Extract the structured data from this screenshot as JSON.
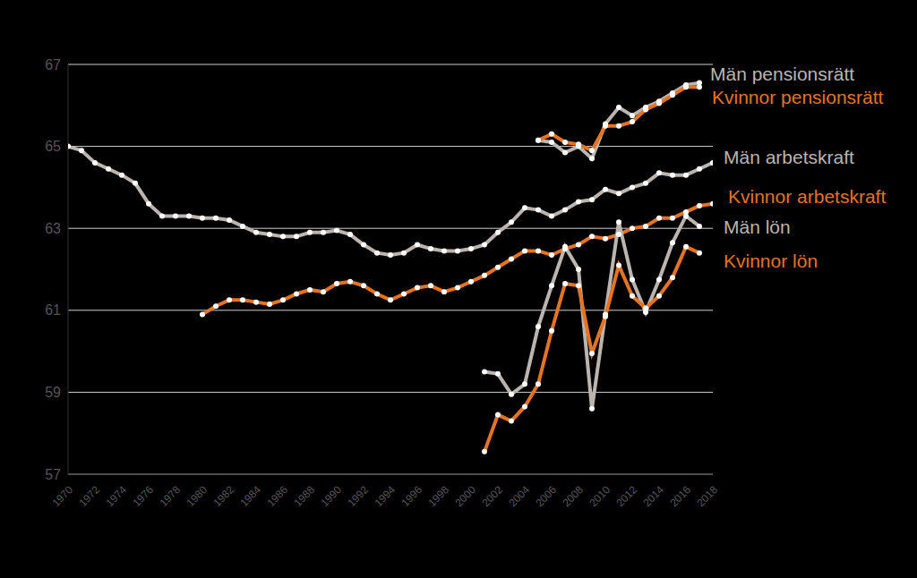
{
  "chart_data": {
    "type": "line",
    "x": [
      1970,
      1971,
      1972,
      1973,
      1974,
      1975,
      1976,
      1977,
      1978,
      1979,
      1980,
      1981,
      1982,
      1983,
      1984,
      1985,
      1986,
      1987,
      1988,
      1989,
      1990,
      1991,
      1992,
      1993,
      1994,
      1995,
      1996,
      1997,
      1998,
      1999,
      2000,
      2001,
      2002,
      2003,
      2004,
      2005,
      2006,
      2007,
      2008,
      2009,
      2010,
      2011,
      2012,
      2013,
      2014,
      2015,
      2016,
      2017,
      2018
    ],
    "xlim": [
      1970,
      2018
    ],
    "xticks": [
      1970,
      1972,
      1974,
      1976,
      1978,
      1980,
      1982,
      1984,
      1986,
      1988,
      1990,
      1992,
      1994,
      1996,
      1998,
      2000,
      2002,
      2004,
      2006,
      2008,
      2010,
      2012,
      2014,
      2016,
      2018
    ],
    "ylim": [
      57,
      67
    ],
    "yticks": [
      57,
      59,
      61,
      63,
      65,
      67
    ],
    "grid": true,
    "marker": "circle",
    "series": [
      {
        "name": "Män pensionsrätt",
        "color": "#bcb4ae",
        "values": [
          null,
          null,
          null,
          null,
          null,
          null,
          null,
          null,
          null,
          null,
          null,
          null,
          null,
          null,
          null,
          null,
          null,
          null,
          null,
          null,
          null,
          null,
          null,
          null,
          null,
          null,
          null,
          null,
          null,
          null,
          null,
          null,
          null,
          null,
          null,
          65.15,
          65.1,
          64.85,
          65.0,
          64.7,
          65.55,
          65.95,
          65.75,
          65.95,
          66.1,
          66.3,
          66.5,
          66.55,
          null
        ]
      },
      {
        "name": "Kvinnor pensionsrätt",
        "color": "#e5731f",
        "values": [
          null,
          null,
          null,
          null,
          null,
          null,
          null,
          null,
          null,
          null,
          null,
          null,
          null,
          null,
          null,
          null,
          null,
          null,
          null,
          null,
          null,
          null,
          null,
          null,
          null,
          null,
          null,
          null,
          null,
          null,
          null,
          null,
          null,
          null,
          null,
          65.15,
          65.3,
          65.1,
          65.05,
          64.9,
          65.5,
          65.5,
          65.6,
          65.9,
          66.05,
          66.25,
          66.45,
          66.45,
          null
        ]
      },
      {
        "name": "Män arbetskraft",
        "color": "#bcb4ae",
        "values": [
          65.0,
          64.9,
          64.6,
          64.45,
          64.3,
          64.1,
          63.6,
          63.3,
          63.3,
          63.3,
          63.25,
          63.25,
          63.2,
          63.05,
          62.9,
          62.85,
          62.8,
          62.8,
          62.9,
          62.9,
          62.95,
          62.85,
          62.6,
          62.4,
          62.35,
          62.4,
          62.6,
          62.5,
          62.45,
          62.45,
          62.5,
          62.6,
          62.9,
          63.15,
          63.5,
          63.45,
          63.3,
          63.45,
          63.65,
          63.7,
          63.95,
          63.85,
          64.0,
          64.1,
          64.35,
          64.3,
          64.3,
          64.45,
          64.6
        ]
      },
      {
        "name": "Kvinnor arbetskraft",
        "color": "#e5731f",
        "values": [
          null,
          null,
          null,
          null,
          null,
          null,
          null,
          null,
          null,
          null,
          60.9,
          61.1,
          61.25,
          61.25,
          61.2,
          61.15,
          61.25,
          61.4,
          61.5,
          61.45,
          61.65,
          61.7,
          61.6,
          61.4,
          61.25,
          61.4,
          61.55,
          61.6,
          61.45,
          61.55,
          61.7,
          61.85,
          62.05,
          62.25,
          62.45,
          62.45,
          62.35,
          62.5,
          62.6,
          62.8,
          62.75,
          62.85,
          63.0,
          63.05,
          63.25,
          63.25,
          63.4,
          63.55,
          63.6
        ]
      },
      {
        "name": "Män lön",
        "color": "#bcb4ae",
        "values": [
          null,
          null,
          null,
          null,
          null,
          null,
          null,
          null,
          null,
          null,
          null,
          null,
          null,
          null,
          null,
          null,
          null,
          null,
          null,
          null,
          null,
          null,
          null,
          null,
          null,
          null,
          null,
          null,
          null,
          null,
          null,
          59.5,
          59.45,
          58.95,
          59.2,
          60.6,
          61.6,
          62.55,
          62.0,
          58.6,
          60.9,
          63.15,
          61.75,
          60.95,
          61.75,
          62.65,
          63.3,
          63.05,
          null
        ]
      },
      {
        "name": "Kvinnor lön",
        "color": "#e5731f",
        "values": [
          null,
          null,
          null,
          null,
          null,
          null,
          null,
          null,
          null,
          null,
          null,
          null,
          null,
          null,
          null,
          null,
          null,
          null,
          null,
          null,
          null,
          null,
          null,
          null,
          null,
          null,
          null,
          null,
          null,
          null,
          null,
          57.55,
          58.45,
          58.3,
          58.65,
          59.2,
          60.5,
          61.65,
          61.6,
          59.95,
          60.85,
          62.1,
          61.35,
          61.05,
          61.35,
          61.8,
          62.55,
          62.4,
          null
        ]
      }
    ]
  }
}
